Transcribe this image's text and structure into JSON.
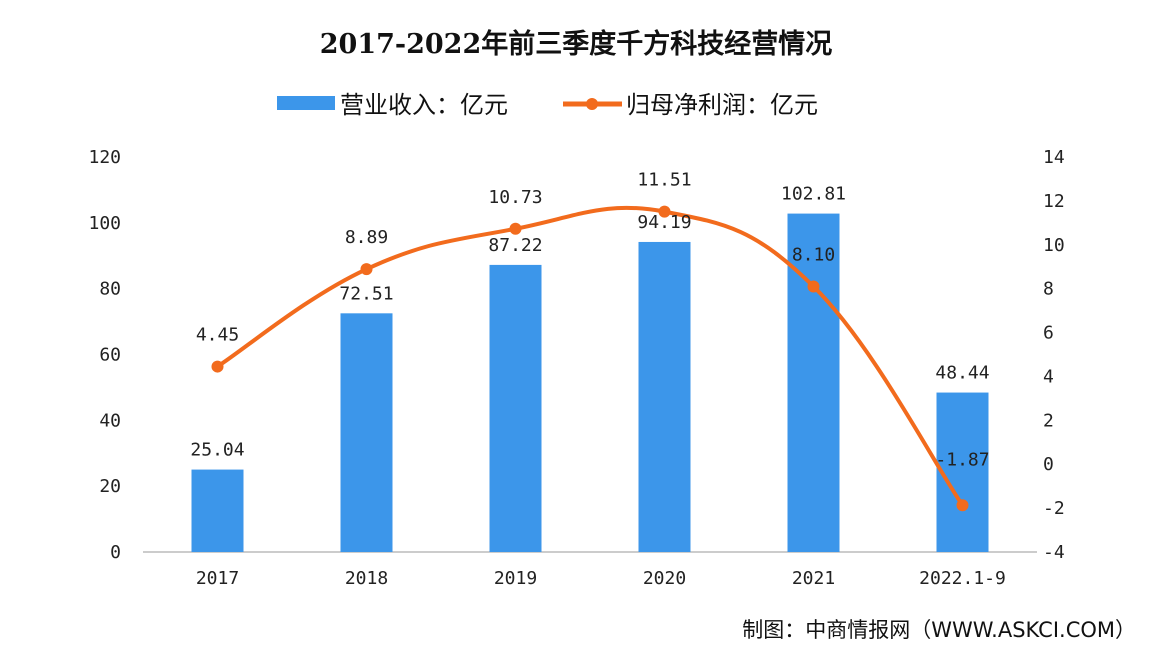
{
  "chart_data": {
    "type": "bar+line",
    "title": "2017-2022年前三季度千方科技经营情况",
    "categories": [
      "2017",
      "2018",
      "2019",
      "2020",
      "2021",
      "2022.1-9"
    ],
    "series": [
      {
        "name": "营业收入：亿元",
        "type": "bar",
        "axis": "left",
        "color": "#3c96ea",
        "values": [
          25.04,
          72.51,
          87.22,
          94.19,
          102.81,
          48.44
        ]
      },
      {
        "name": "归母净利润：亿元",
        "type": "line",
        "axis": "right",
        "color": "#f26b1d",
        "values": [
          4.45,
          8.89,
          10.73,
          11.51,
          8.1,
          -1.87
        ]
      }
    ],
    "left_axis": {
      "ylim": [
        0,
        120
      ],
      "ticks": [
        0,
        20,
        40,
        60,
        80,
        100,
        120
      ]
    },
    "right_axis": {
      "ylim": [
        -4,
        14
      ],
      "ticks": [
        -4,
        -2,
        0,
        2,
        4,
        6,
        8,
        10,
        12,
        14
      ]
    },
    "legend_position": "top",
    "grid": false
  },
  "source": "制图：中商情报网（WWW.ASKCI.COM）"
}
